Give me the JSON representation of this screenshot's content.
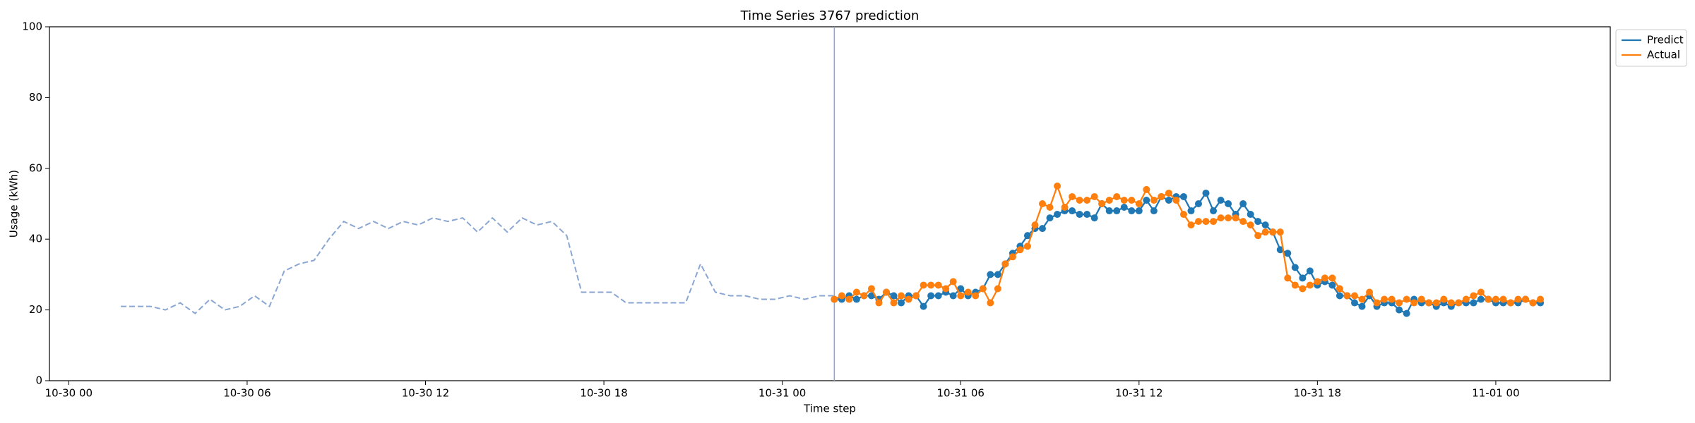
{
  "chart_data": {
    "type": "line",
    "title": "Time Series 3767 prediction",
    "xlabel": "Time step",
    "ylabel": "Usage (kWh)",
    "ylim": [
      0,
      100
    ],
    "yticks": [
      0,
      20,
      40,
      60,
      80,
      100
    ],
    "xlim": [
      "10-29 23:21",
      "11-01 03:51"
    ],
    "xticks": [
      "10-30 00",
      "10-30 06",
      "10-30 12",
      "10-30 18",
      "10-31 00",
      "10-31 06",
      "10-31 12",
      "10-31 18",
      "11-01 00"
    ],
    "grid": false,
    "legend": "outside upper right",
    "history": {
      "color": "#8aa6d2",
      "dashed": true,
      "x": [
        "10-30 01:45",
        "10-30 02:15",
        "10-30 02:45",
        "10-30 03:15",
        "10-30 03:45",
        "10-30 04:15",
        "10-30 04:45",
        "10-30 05:15",
        "10-30 05:45",
        "10-30 06:15",
        "10-30 06:45",
        "10-30 07:15",
        "10-30 07:45",
        "10-30 08:15",
        "10-30 08:45",
        "10-30 09:15",
        "10-30 09:45",
        "10-30 10:15",
        "10-30 10:45",
        "10-30 11:15",
        "10-30 11:45",
        "10-30 12:15",
        "10-30 12:45",
        "10-30 13:15",
        "10-30 13:45",
        "10-30 14:15",
        "10-30 14:45",
        "10-30 15:15",
        "10-30 15:45",
        "10-30 16:15",
        "10-30 16:45",
        "10-30 17:15",
        "10-30 17:45",
        "10-30 18:15",
        "10-30 18:45",
        "10-30 19:15",
        "10-30 19:45",
        "10-30 20:15",
        "10-30 20:45",
        "10-30 21:15",
        "10-30 21:45",
        "10-30 22:15",
        "10-30 22:45",
        "10-30 23:15",
        "10-30 23:45",
        "10-31 00:15",
        "10-31 00:45",
        "10-31 01:15",
        "10-31 01:45"
      ],
      "values": [
        21,
        21,
        21,
        20,
        22,
        19,
        23,
        20,
        21,
        24,
        21,
        31,
        33,
        34,
        40,
        45,
        43,
        45,
        43,
        45,
        44,
        46,
        45,
        46,
        42,
        46,
        42,
        46,
        44,
        45,
        41,
        25,
        25,
        25,
        22,
        22,
        22,
        22,
        22,
        33,
        25,
        24,
        24,
        23,
        23,
        24,
        23,
        24,
        24
      ]
    },
    "forecast_start_color": "#8aa6d2",
    "x": [
      "10-31 01:45",
      "10-31 02:00",
      "10-31 02:15",
      "10-31 02:30",
      "10-31 02:45",
      "10-31 03:00",
      "10-31 03:15",
      "10-31 03:30",
      "10-31 03:45",
      "10-31 04:00",
      "10-31 04:15",
      "10-31 04:30",
      "10-31 04:45",
      "10-31 05:00",
      "10-31 05:15",
      "10-31 05:30",
      "10-31 05:45",
      "10-31 06:00",
      "10-31 06:15",
      "10-31 06:30",
      "10-31 06:45",
      "10-31 07:00",
      "10-31 07:15",
      "10-31 07:30",
      "10-31 07:45",
      "10-31 08:00",
      "10-31 08:15",
      "10-31 08:30",
      "10-31 08:45",
      "10-31 09:00",
      "10-31 09:15",
      "10-31 09:30",
      "10-31 09:45",
      "10-31 10:00",
      "10-31 10:15",
      "10-31 10:30",
      "10-31 10:45",
      "10-31 11:00",
      "10-31 11:15",
      "10-31 11:30",
      "10-31 11:45",
      "10-31 12:00",
      "10-31 12:15",
      "10-31 12:30",
      "10-31 12:45",
      "10-31 13:00",
      "10-31 13:15",
      "10-31 13:30",
      "10-31 13:45",
      "10-31 14:00",
      "10-31 14:15",
      "10-31 14:30",
      "10-31 14:45",
      "10-31 15:00",
      "10-31 15:15",
      "10-31 15:30",
      "10-31 15:45",
      "10-31 16:00",
      "10-31 16:15",
      "10-31 16:30",
      "10-31 16:45",
      "10-31 17:00",
      "10-31 17:15",
      "10-31 17:30",
      "10-31 17:45",
      "10-31 18:00",
      "10-31 18:15",
      "10-31 18:30",
      "10-31 18:45",
      "10-31 19:00",
      "10-31 19:15",
      "10-31 19:30",
      "10-31 19:45",
      "10-31 20:00",
      "10-31 20:15",
      "10-31 20:30",
      "10-31 20:45",
      "10-31 21:00",
      "10-31 21:15",
      "10-31 21:30",
      "10-31 21:45",
      "10-31 22:00",
      "10-31 22:15",
      "10-31 22:30",
      "10-31 22:45",
      "10-31 23:00",
      "10-31 23:15",
      "10-31 23:30",
      "10-31 23:45",
      "11-01 00:00",
      "11-01 00:15",
      "11-01 00:30",
      "11-01 00:45",
      "11-01 01:00",
      "11-01 01:15",
      "11-01 01:30"
    ],
    "series": [
      {
        "name": "Predict",
        "color": "#1f77b4",
        "values": [
          23,
          23,
          24,
          23,
          24,
          24,
          23,
          25,
          24,
          22,
          24,
          24,
          21,
          24,
          24,
          25,
          24,
          26,
          24,
          25,
          26,
          30,
          30,
          33,
          36,
          38,
          41,
          43,
          43,
          46,
          47,
          48,
          48,
          47,
          47,
          46,
          50,
          48,
          48,
          49,
          48,
          48,
          51,
          48,
          52,
          51,
          52,
          52,
          48,
          50,
          53,
          48,
          51,
          50,
          47,
          50,
          47,
          45,
          44,
          42,
          37,
          36,
          32,
          29,
          31,
          27,
          28,
          27,
          24,
          24,
          22,
          21,
          24,
          21,
          22,
          22,
          20,
          19,
          23,
          22,
          22,
          21,
          22,
          21,
          22,
          22,
          22,
          23,
          23,
          22,
          22,
          22,
          22,
          23,
          22,
          22
        ]
      },
      {
        "name": "Actual",
        "color": "#ff7f0e",
        "values": [
          23,
          24,
          23,
          25,
          24,
          26,
          22,
          25,
          22,
          24,
          23,
          24,
          27,
          27,
          27,
          26,
          28,
          24,
          25,
          24,
          26,
          22,
          26,
          33,
          35,
          37,
          38,
          44,
          50,
          49,
          55,
          49,
          52,
          51,
          51,
          52,
          50,
          51,
          52,
          51,
          51,
          50,
          54,
          51,
          52,
          53,
          51,
          47,
          44,
          45,
          45,
          45,
          46,
          46,
          46,
          45,
          44,
          41,
          42,
          42,
          42,
          29,
          27,
          26,
          27,
          28,
          29,
          29,
          26,
          24,
          24,
          23,
          25,
          22,
          23,
          23,
          22,
          23,
          22,
          23,
          22,
          22,
          23,
          22,
          22,
          23,
          24,
          25,
          23,
          23,
          23,
          22,
          23,
          23,
          22,
          23
        ]
      }
    ]
  }
}
